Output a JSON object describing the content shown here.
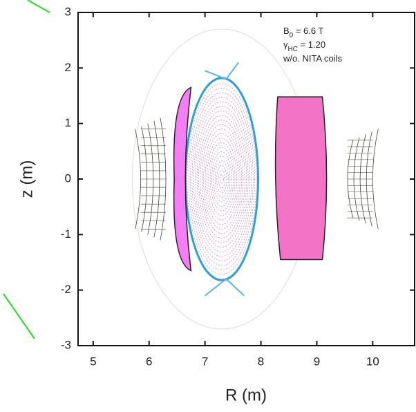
{
  "chart_data": {
    "type": "plot",
    "x_label": "R (m)",
    "y_label": "z (m)",
    "xlim": [
      4.73,
      10.75
    ],
    "ylim": [
      -3,
      3
    ],
    "xticks": [
      5,
      6,
      7,
      8,
      9,
      10
    ],
    "yticks": [
      -3,
      -2,
      -1,
      0,
      1,
      2,
      3
    ],
    "annotations": [
      {
        "main": "B",
        "sub": "0",
        "rest": " = 6.6 T"
      },
      {
        "main": "γ",
        "sub": "HC",
        "rest": " = 1.20"
      },
      {
        "main": "w/o. NITA coils"
      }
    ]
  }
}
